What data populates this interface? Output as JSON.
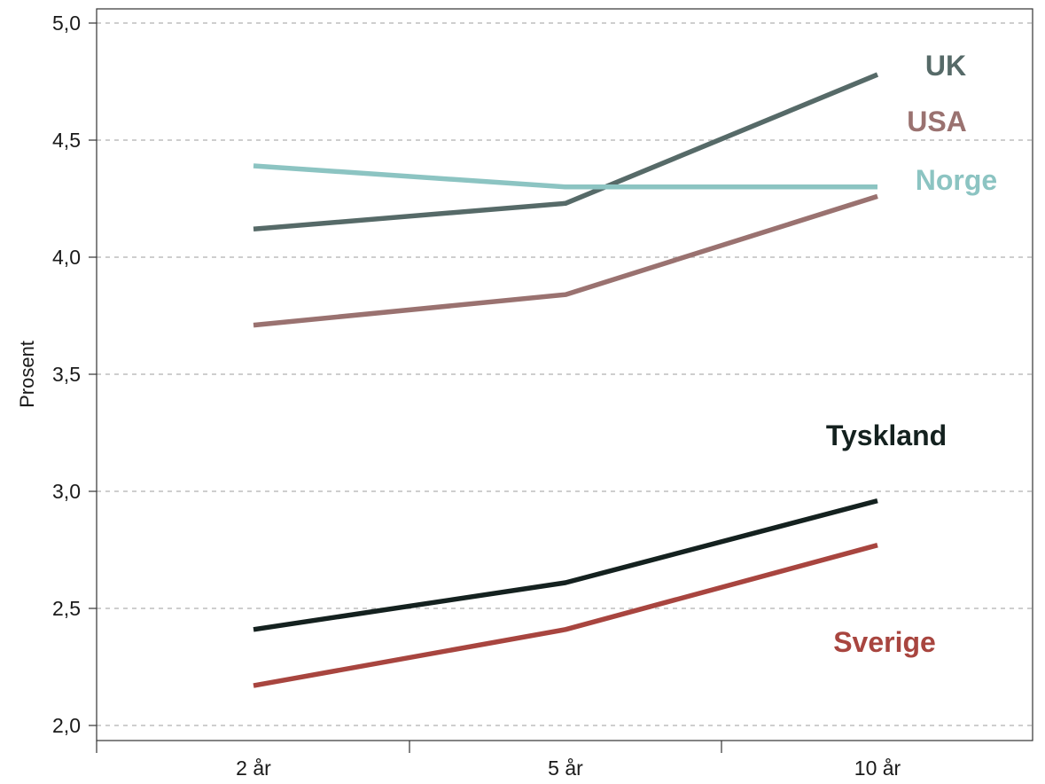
{
  "chart_data": {
    "type": "line",
    "title": "",
    "xlabel": "",
    "ylabel": "Prosent",
    "categories": [
      "2 år",
      "5 år",
      "10 år"
    ],
    "ylim": [
      2.0,
      5.0
    ],
    "yticks": [
      "2,0",
      "2,5",
      "3,0",
      "3,5",
      "4,0",
      "4,5",
      "5,0"
    ],
    "ytick_values": [
      2.0,
      2.5,
      3.0,
      3.5,
      4.0,
      4.5,
      5.0
    ],
    "grid": "horizontal dashed",
    "legend": "inline labels at right",
    "series": [
      {
        "name": "UK",
        "values": [
          4.12,
          4.23,
          4.78
        ],
        "color": "#566a68"
      },
      {
        "name": "USA",
        "values": [
          3.71,
          3.84,
          4.26
        ],
        "color": "#9a7270"
      },
      {
        "name": "Norge",
        "values": [
          4.39,
          4.3,
          4.3
        ],
        "color": "#8cc4c2"
      },
      {
        "name": "Tyskland",
        "values": [
          2.41,
          2.61,
          2.96
        ],
        "color": "#14211f"
      },
      {
        "name": "Sverige",
        "values": [
          2.17,
          2.41,
          2.77
        ],
        "color": "#a8453f"
      }
    ]
  }
}
